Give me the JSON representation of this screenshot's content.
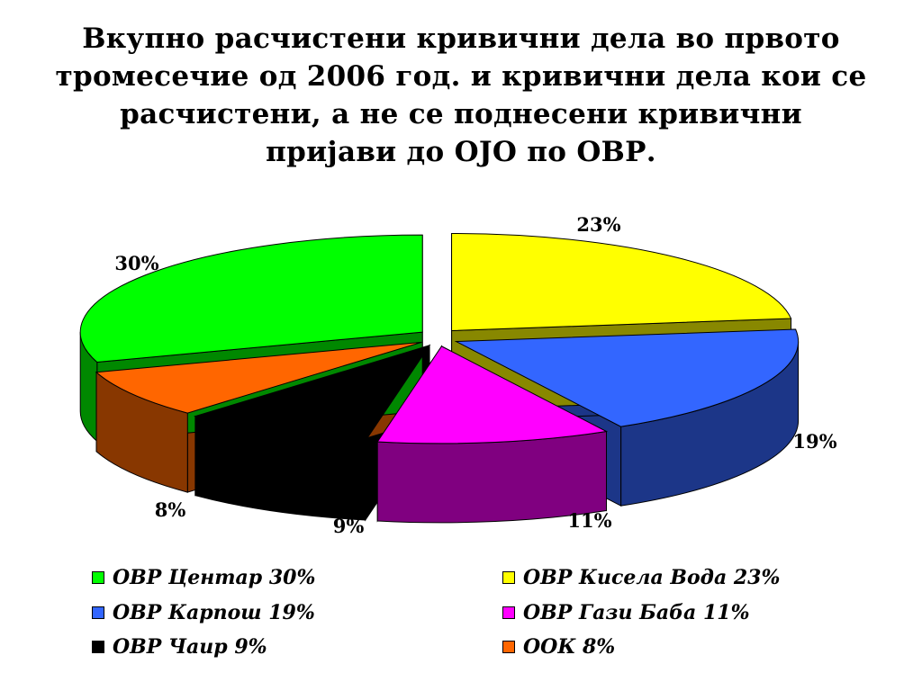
{
  "chart_data": {
    "type": "pie",
    "title": "Вкупно расчистени кривични дела во првото тромесечие од 2006 год. и кривични дела кои се расчистени, а не се поднесени кривични пријави до ОЈО по ОВР.",
    "labels": [
      "ОВР Центар",
      "ОВР Кисела Вода",
      "ОВР Карпош",
      "ОВР Гази Баба",
      "ОВР Чаир",
      "ООК"
    ],
    "values": [
      30,
      23,
      19,
      11,
      9,
      8
    ],
    "value_labels": [
      "30%",
      "23%",
      "19%",
      "11%",
      "9%",
      "8%"
    ],
    "colors": [
      "#00ff00",
      "#ffff00",
      "#3366ff",
      "#ff00ff",
      "#000000",
      "#ff6600"
    ],
    "side_colors": [
      "#008800",
      "#888800",
      "#1c3688",
      "#800080",
      "#000000",
      "#883700"
    ],
    "exploded": true,
    "three_d": true,
    "legend_position": "bottom",
    "legend": [
      {
        "text": "ОВР Центар 30%",
        "color": "#00ff00"
      },
      {
        "text": "ОВР Кисела Вода 23%",
        "color": "#ffff00"
      },
      {
        "text": "ОВР Карпош 19%",
        "color": "#3366ff"
      },
      {
        "text": "ОВР Гази Баба 11%",
        "color": "#ff00ff"
      },
      {
        "text": "ОВР Чаир 9%",
        "color": "#000000"
      },
      {
        "text": "ООК 8%",
        "color": "#ff6600"
      }
    ]
  }
}
